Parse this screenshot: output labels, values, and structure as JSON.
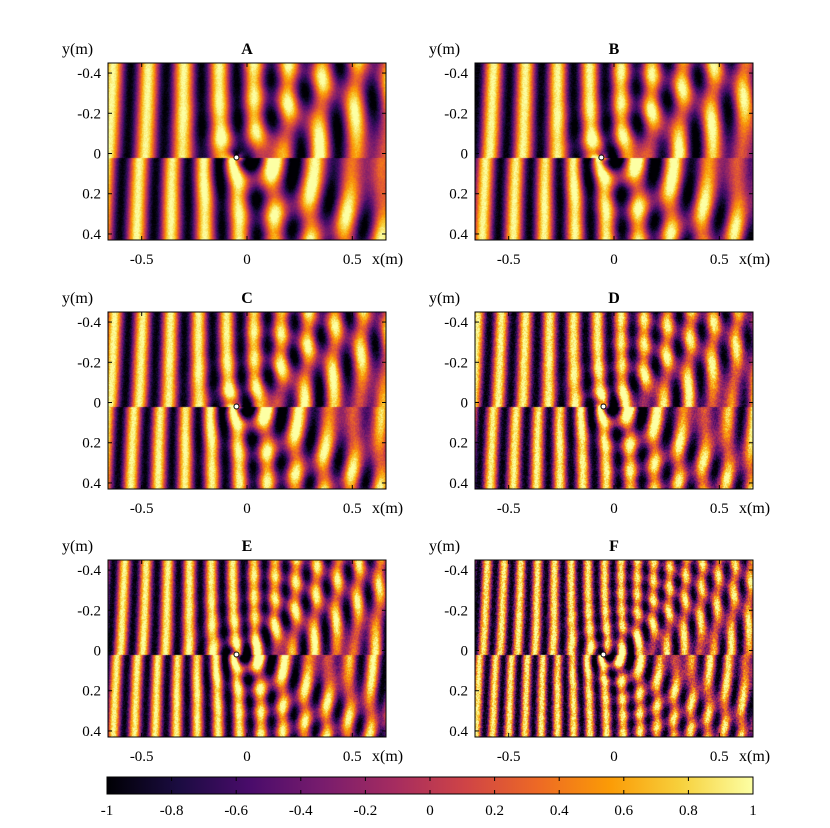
{
  "chart_data": {
    "type": "heatmap",
    "xlabel": "x(m)",
    "ylabel": "y(m)",
    "xlim": [
      -0.66,
      0.66
    ],
    "ylim": [
      -0.45,
      0.43
    ],
    "xticks": [
      -0.5,
      0,
      0.5
    ],
    "xtick_labels": [
      "-0.5",
      "0",
      "0.5"
    ],
    "yticks": [
      -0.4,
      -0.2,
      0,
      0.2,
      0.4
    ],
    "ytick_labels": [
      "-0.4",
      "-0.2",
      "0",
      "0.2",
      "0.4"
    ],
    "y_axis_direction": "reversed",
    "colormap": "inferno",
    "colormap_stops": [
      "#000004",
      "#1b0c41",
      "#4a0c6b",
      "#781c6d",
      "#a52c60",
      "#cf4446",
      "#ed6925",
      "#fb9b06",
      "#f7d13d",
      "#fcffa4"
    ],
    "clim": [
      -1,
      1
    ],
    "colorbar": {
      "placement": "bottom",
      "ticks": [
        -1,
        -0.8,
        -0.6,
        -0.4,
        -0.2,
        0,
        0.2,
        0.4,
        0.6,
        0.8,
        1
      ],
      "tick_labels": [
        "-1",
        "-0.8",
        "-0.6",
        "-0.4",
        "-0.2",
        "0",
        "0.2",
        "0.4",
        "0.6",
        "0.8",
        "1"
      ]
    },
    "panels": [
      {
        "title": "A",
        "source_x": -0.05,
        "source_y": 0.02,
        "wavenumber": 38,
        "pattern_noise": 0.08
      },
      {
        "title": "B",
        "source_x": -0.06,
        "source_y": 0.02,
        "wavenumber": 42,
        "pattern_noise": 0.1
      },
      {
        "title": "C",
        "source_x": -0.05,
        "source_y": 0.02,
        "wavenumber": 48,
        "pattern_noise": 0.12
      },
      {
        "title": "D",
        "source_x": -0.05,
        "source_y": 0.02,
        "wavenumber": 56,
        "pattern_noise": 0.18
      },
      {
        "title": "E",
        "source_x": -0.05,
        "source_y": 0.02,
        "wavenumber": 62,
        "pattern_noise": 0.16
      },
      {
        "title": "F",
        "source_x": -0.05,
        "source_y": 0.02,
        "wavenumber": 80,
        "pattern_noise": 0.28
      }
    ]
  }
}
